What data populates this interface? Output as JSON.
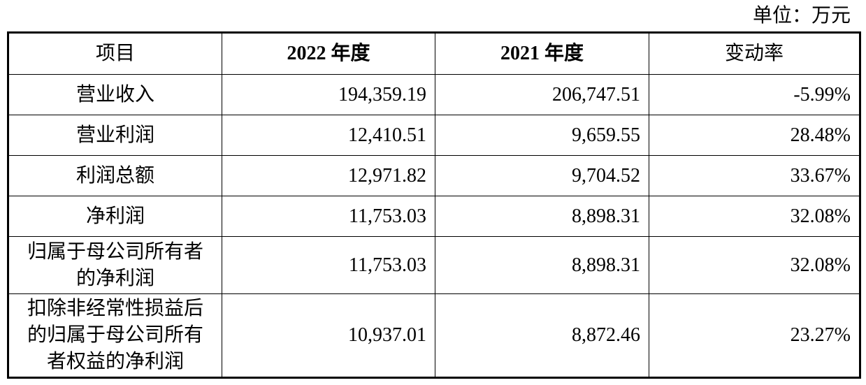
{
  "unit": "单位：万元",
  "table": {
    "headers": [
      "项目",
      "2022 年度",
      "2021 年度",
      "变动率"
    ],
    "rows": [
      [
        [
          "营业收入"
        ],
        "194,359.19",
        "206,747.51",
        "-5.99%"
      ],
      [
        [
          "营业利润"
        ],
        "12,410.51",
        "9,659.55",
        "28.48%"
      ],
      [
        [
          "利润总额"
        ],
        "12,971.82",
        "9,704.52",
        "33.67%"
      ],
      [
        [
          "净利润"
        ],
        "11,753.03",
        "8,898.31",
        "32.08%"
      ],
      [
        [
          "归属于母公司所有者",
          "的净利润"
        ],
        "11,753.03",
        "8,898.31",
        "32.08%"
      ],
      [
        [
          "扣除非经常性损益后",
          "的归属于母公司所有",
          "者权益的净利润"
        ],
        "10,937.01",
        "8,872.46",
        "23.27%"
      ]
    ]
  }
}
